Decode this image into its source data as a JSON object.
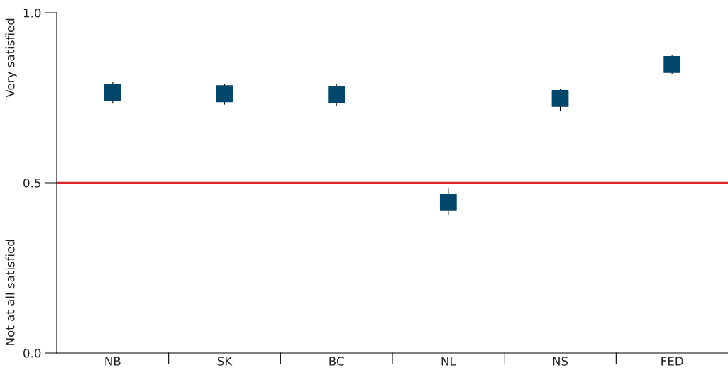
{
  "chart_data": {
    "type": "scatter",
    "categories": [
      "NB",
      "SK",
      "BC",
      "NL",
      "NS",
      "FED"
    ],
    "series": [
      {
        "color": "#00476b",
        "values": [
          0.765,
          0.762,
          0.76,
          0.444,
          0.748,
          0.848
        ],
        "errors": [
          [
            0.733,
            0.796
          ],
          [
            0.73,
            0.79
          ],
          [
            0.727,
            0.79
          ],
          [
            0.406,
            0.485
          ],
          [
            0.712,
            0.775
          ],
          [
            0.821,
            0.877
          ]
        ]
      }
    ],
    "marker": "square",
    "ylim": [
      0,
      1
    ],
    "yticks": [
      {
        "value": 0,
        "label": "0.0"
      },
      0.5,
      {
        "value": 1,
        "label": "1.0"
      }
    ],
    "ref_lines": [
      {
        "axis": "y",
        "value": 0.5,
        "label": null,
        "color": "#d62728",
        "line_style": "solid"
      }
    ],
    "annotations": [
      "Very satisfied",
      "Not at all satisfied"
    ],
    "grid": false
  }
}
